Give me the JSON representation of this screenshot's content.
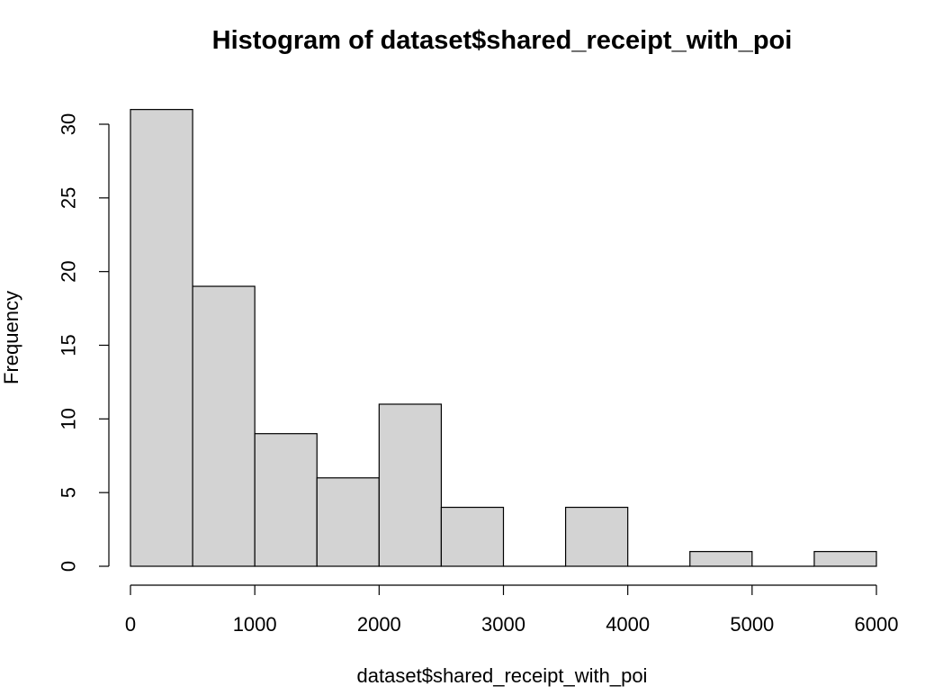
{
  "chart_data": {
    "type": "bar",
    "subtype": "histogram",
    "title": "Histogram of dataset$shared_receipt_with_poi",
    "xlabel": "dataset$shared_receipt_with_poi",
    "ylabel": "Frequency",
    "bins": [
      {
        "x0": 0,
        "x1": 500,
        "count": 31
      },
      {
        "x0": 500,
        "x1": 1000,
        "count": 19
      },
      {
        "x0": 1000,
        "x1": 1500,
        "count": 9
      },
      {
        "x0": 1500,
        "x1": 2000,
        "count": 6
      },
      {
        "x0": 2000,
        "x1": 2500,
        "count": 11
      },
      {
        "x0": 2500,
        "x1": 3000,
        "count": 4
      },
      {
        "x0": 3000,
        "x1": 3500,
        "count": 0
      },
      {
        "x0": 3500,
        "x1": 4000,
        "count": 4
      },
      {
        "x0": 4000,
        "x1": 4500,
        "count": 0
      },
      {
        "x0": 4500,
        "x1": 5000,
        "count": 1
      },
      {
        "x0": 5000,
        "x1": 5500,
        "count": 0
      },
      {
        "x0": 5500,
        "x1": 6000,
        "count": 1
      }
    ],
    "xlim": [
      0,
      6000
    ],
    "ylim": [
      0,
      31
    ],
    "x_ticks": [
      0,
      1000,
      2000,
      3000,
      4000,
      5000,
      6000
    ],
    "y_ticks": [
      0,
      5,
      10,
      15,
      20,
      25,
      30
    ],
    "bar_fill": "#d3d3d3",
    "bar_stroke": "#000000",
    "grid": false,
    "legend": "none"
  }
}
